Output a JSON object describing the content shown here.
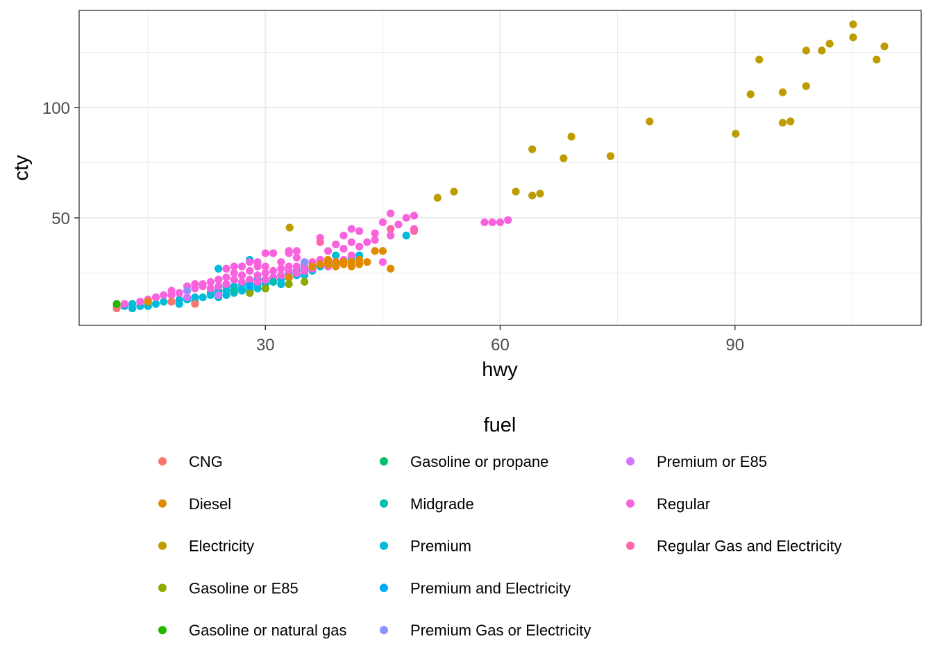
{
  "chart_data": {
    "type": "scatter",
    "title": "",
    "xlabel": "hwy",
    "ylabel": "cty",
    "xlim": [
      6.2,
      113.8
    ],
    "ylim": [
      1.3,
      144.0
    ],
    "x_ticks": [
      30,
      60,
      90
    ],
    "x_tick_labels": [
      "30",
      "60",
      "90"
    ],
    "x_minor_breaks": [
      15,
      45,
      75,
      105
    ],
    "y_ticks": [
      50,
      100
    ],
    "y_tick_labels": [
      "50",
      "100"
    ],
    "y_minor_breaks": [
      25,
      75,
      125
    ],
    "grid": true,
    "legend": {
      "title": "fuel",
      "position": "bottom",
      "columns": 3,
      "entries": [
        {
          "label": "CNG",
          "color": "#F8766D"
        },
        {
          "label": "Diesel",
          "color": "#E18A00"
        },
        {
          "label": "Electricity",
          "color": "#BE9C00"
        },
        {
          "label": "Gasoline or E85",
          "color": "#8CAB00"
        },
        {
          "label": "Gasoline or natural gas",
          "color": "#24B700"
        },
        {
          "label": "Gasoline or propane",
          "color": "#00BE70"
        },
        {
          "label": "Midgrade",
          "color": "#00C1AB"
        },
        {
          "label": "Premium",
          "color": "#00BBDA"
        },
        {
          "label": "Premium and Electricity",
          "color": "#00ACFC"
        },
        {
          "label": "Premium Gas or Electricity",
          "color": "#8B93FF"
        },
        {
          "label": "Premium or E85",
          "color": "#D575FE"
        },
        {
          "label": "Regular",
          "color": "#F962DD"
        },
        {
          "label": "Regular Gas and Electricity",
          "color": "#FF65AC"
        }
      ]
    },
    "series": [
      {
        "name": "Premium",
        "points": [
          [
            12,
            10
          ],
          [
            13,
            9
          ],
          [
            13,
            11
          ],
          [
            14,
            10
          ],
          [
            14,
            12
          ],
          [
            15,
            10
          ],
          [
            15,
            11
          ],
          [
            16,
            11
          ],
          [
            17,
            12
          ],
          [
            18,
            12
          ],
          [
            19,
            11
          ],
          [
            19,
            13
          ],
          [
            20,
            13
          ],
          [
            21,
            12
          ],
          [
            21,
            14
          ],
          [
            22,
            14
          ],
          [
            23,
            15
          ],
          [
            23,
            16
          ],
          [
            24,
            14
          ],
          [
            24,
            16
          ],
          [
            24,
            17
          ],
          [
            24,
            27
          ],
          [
            25,
            15
          ],
          [
            25,
            17
          ],
          [
            25,
            19
          ],
          [
            26,
            16
          ],
          [
            26,
            18
          ],
          [
            26,
            19
          ],
          [
            27,
            17
          ],
          [
            27,
            18
          ],
          [
            27,
            20
          ],
          [
            28,
            16
          ],
          [
            28,
            17
          ],
          [
            28,
            19
          ],
          [
            28,
            20
          ],
          [
            28,
            31
          ],
          [
            29,
            18
          ],
          [
            29,
            20
          ],
          [
            29,
            22
          ],
          [
            30,
            18
          ],
          [
            30,
            20
          ],
          [
            30,
            22
          ],
          [
            31,
            21
          ],
          [
            31,
            23
          ],
          [
            32,
            20
          ],
          [
            32,
            22
          ],
          [
            32,
            24
          ],
          [
            33,
            23
          ],
          [
            33,
            25
          ],
          [
            34,
            24
          ],
          [
            34,
            26
          ],
          [
            35,
            24
          ],
          [
            35,
            27
          ],
          [
            36,
            26
          ],
          [
            36,
            28
          ],
          [
            37,
            28
          ],
          [
            39,
            29
          ],
          [
            39,
            33
          ],
          [
            41,
            32
          ],
          [
            42,
            33
          ],
          [
            48,
            42
          ]
        ]
      },
      {
        "name": "Regular",
        "points": [
          [
            12,
            11
          ],
          [
            14,
            12
          ],
          [
            15,
            13
          ],
          [
            16,
            14
          ],
          [
            17,
            15
          ],
          [
            18,
            15
          ],
          [
            18,
            17
          ],
          [
            19,
            16
          ],
          [
            20,
            17
          ],
          [
            20,
            19
          ],
          [
            21,
            18
          ],
          [
            21,
            20
          ],
          [
            22,
            19
          ],
          [
            22,
            20
          ],
          [
            23,
            18
          ],
          [
            23,
            21
          ],
          [
            24,
            19
          ],
          [
            24,
            22
          ],
          [
            25,
            20
          ],
          [
            25,
            23
          ],
          [
            25,
            27
          ],
          [
            26,
            22
          ],
          [
            26,
            25
          ],
          [
            26,
            28
          ],
          [
            27,
            21
          ],
          [
            27,
            24
          ],
          [
            27,
            28
          ],
          [
            28,
            22
          ],
          [
            28,
            26
          ],
          [
            28,
            30
          ],
          [
            29,
            21
          ],
          [
            29,
            24
          ],
          [
            29,
            28
          ],
          [
            29,
            30
          ],
          [
            30,
            22
          ],
          [
            30,
            25
          ],
          [
            30,
            28
          ],
          [
            30,
            34
          ],
          [
            31,
            23
          ],
          [
            31,
            26
          ],
          [
            31,
            34
          ],
          [
            32,
            24
          ],
          [
            32,
            27
          ],
          [
            32,
            30
          ],
          [
            33,
            23
          ],
          [
            33,
            26
          ],
          [
            33,
            28
          ],
          [
            33,
            34
          ],
          [
            33,
            35
          ],
          [
            34,
            25
          ],
          [
            34,
            28
          ],
          [
            34,
            32
          ],
          [
            34,
            35
          ],
          [
            35,
            26
          ],
          [
            35,
            29
          ],
          [
            36,
            27
          ],
          [
            36,
            30
          ],
          [
            37,
            29
          ],
          [
            37,
            31
          ],
          [
            37,
            41
          ],
          [
            38,
            28
          ],
          [
            38,
            30
          ],
          [
            38,
            35
          ],
          [
            39,
            30
          ],
          [
            39,
            38
          ],
          [
            40,
            31
          ],
          [
            40,
            36
          ],
          [
            40,
            42
          ],
          [
            41,
            33
          ],
          [
            41,
            39
          ],
          [
            41,
            45
          ],
          [
            42,
            37
          ],
          [
            42,
            44
          ],
          [
            43,
            39
          ],
          [
            44,
            40
          ],
          [
            44,
            43
          ],
          [
            45,
            30
          ],
          [
            45,
            48
          ],
          [
            46,
            42
          ],
          [
            46,
            52
          ],
          [
            47,
            47
          ],
          [
            48,
            50
          ],
          [
            49,
            45
          ],
          [
            49,
            51
          ],
          [
            58,
            48
          ],
          [
            59,
            48
          ],
          [
            60,
            48
          ],
          [
            61,
            49
          ]
        ]
      },
      {
        "name": "Diesel",
        "points": [
          [
            15,
            12
          ],
          [
            33,
            23
          ],
          [
            36,
            28
          ],
          [
            37,
            29
          ],
          [
            38,
            29
          ],
          [
            38,
            31
          ],
          [
            39,
            28
          ],
          [
            39,
            30
          ],
          [
            40,
            29
          ],
          [
            40,
            30
          ],
          [
            41,
            28
          ],
          [
            41,
            30
          ],
          [
            42,
            29
          ],
          [
            42,
            31
          ],
          [
            43,
            30
          ],
          [
            44,
            35
          ],
          [
            45,
            35
          ],
          [
            46,
            27
          ]
        ]
      },
      {
        "name": "Electricity",
        "points": [
          [
            33.1,
            45.6
          ],
          [
            52.0,
            59.1
          ],
          [
            54.1,
            61.9
          ],
          [
            62.0,
            61.9
          ],
          [
            64.1,
            60.1
          ],
          [
            65.1,
            61.0
          ],
          [
            64.1,
            81.1
          ],
          [
            68.1,
            77.0
          ],
          [
            69.1,
            86.8
          ],
          [
            74.1,
            78.0
          ],
          [
            79.1,
            93.7
          ],
          [
            90.1,
            88.1
          ],
          [
            92.0,
            106.0
          ],
          [
            93.1,
            121.7
          ],
          [
            96.1,
            106.9
          ],
          [
            96.1,
            93.1
          ],
          [
            97.1,
            93.7
          ],
          [
            99.1,
            125.8
          ],
          [
            99.1,
            109.7
          ],
          [
            101.1,
            125.8
          ],
          [
            102.1,
            128.9
          ],
          [
            105.1,
            137.7
          ],
          [
            105.1,
            131.8
          ],
          [
            108.1,
            121.7
          ],
          [
            109.1,
            127.7
          ]
        ]
      },
      {
        "name": "CNG",
        "points": [
          [
            11,
            9
          ],
          [
            11,
            10
          ],
          [
            18,
            12
          ],
          [
            21,
            11
          ],
          [
            26,
            17
          ]
        ]
      },
      {
        "name": "Gasoline or E85",
        "points": [
          [
            30,
            18
          ],
          [
            33,
            20
          ],
          [
            35,
            21
          ],
          [
            28,
            16
          ]
        ]
      },
      {
        "name": "Gasoline or natural gas",
        "points": [
          [
            11,
            11
          ]
        ]
      },
      {
        "name": "Gasoline or propane",
        "points": [
          [
            24,
            15
          ]
        ]
      },
      {
        "name": "Midgrade",
        "points": [
          [
            26,
            17
          ],
          [
            31,
            21
          ]
        ]
      },
      {
        "name": "Premium and Electricity",
        "points": [
          [
            28,
            19
          ]
        ]
      },
      {
        "name": "Premium Gas or Electricity",
        "points": [
          [
            20,
            17
          ],
          [
            35,
            30
          ]
        ]
      },
      {
        "name": "Premium or E85",
        "points": [
          [
            20,
            14
          ],
          [
            24,
            15
          ]
        ]
      },
      {
        "name": "Regular Gas and Electricity",
        "points": [
          [
            37,
            39
          ],
          [
            46,
            45
          ],
          [
            49,
            44
          ]
        ]
      }
    ]
  }
}
